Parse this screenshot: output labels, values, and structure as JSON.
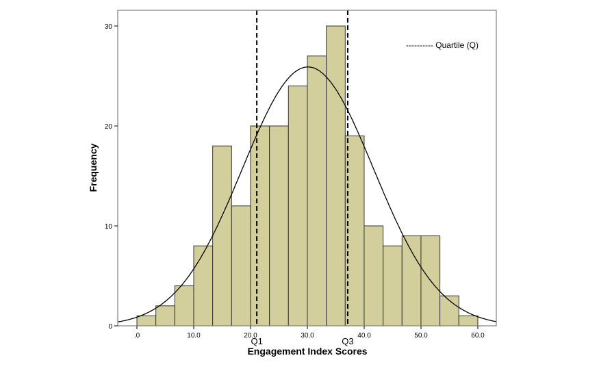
{
  "chart_data": {
    "type": "bar",
    "subtype": "histogram",
    "xlabel": "Engagement Index Scores",
    "ylabel": "Frequency",
    "xlim": [
      -3.3,
      63.3
    ],
    "ylim": [
      0,
      30.5
    ],
    "x_ticks": [
      0,
      10,
      20,
      30,
      40,
      50,
      60
    ],
    "x_tick_labels": [
      ".0",
      "10.0",
      "20.0",
      "30.0",
      "40.0",
      "50.0",
      "60.0"
    ],
    "y_ticks": [
      0,
      10,
      20,
      30
    ],
    "y_tick_labels": [
      "0",
      "10",
      "20",
      "30"
    ],
    "bin_start": 0,
    "bin_width": 3.333,
    "values": [
      1,
      2,
      4,
      8,
      18,
      12,
      20,
      20,
      24,
      27,
      30,
      19,
      10,
      8,
      9,
      9,
      3,
      1
    ],
    "normal_curve": {
      "mean": 30.1,
      "sd": 11.55,
      "n": 225
    },
    "quartiles": [
      {
        "label": "Q1",
        "value": 21.1
      },
      {
        "label": "Q3",
        "value": 37.1
      }
    ],
    "legend": {
      "text": "---------- Quartile (Q)",
      "position": "top-right"
    },
    "bar_color": "#d3cf9d",
    "grid": false
  }
}
